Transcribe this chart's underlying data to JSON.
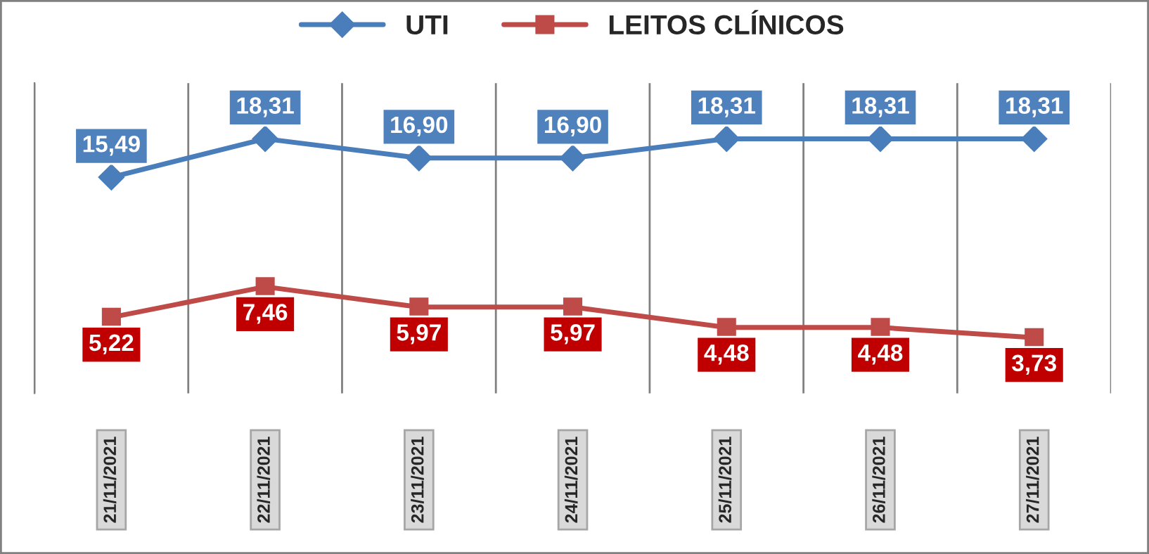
{
  "chart_data": {
    "type": "line",
    "categories": [
      "21/11/2021",
      "22/11/2021",
      "23/11/2021",
      "24/11/2021",
      "25/11/2021",
      "26/11/2021",
      "27/11/2021"
    ],
    "series": [
      {
        "name": "UTI",
        "color": "#4a7ebb",
        "marker": "diamond",
        "values": [
          15.49,
          18.31,
          16.9,
          16.9,
          18.31,
          18.31,
          18.31
        ],
        "value_labels": [
          "15,49",
          "18,31",
          "16,90",
          "16,90",
          "18,31",
          "18,31",
          "18,31"
        ]
      },
      {
        "name": "LEITOS CLÍNICOS",
        "color": "#be4b48",
        "marker": "square",
        "values": [
          5.22,
          7.46,
          5.97,
          5.97,
          4.48,
          4.48,
          3.73
        ],
        "value_labels": [
          "5,22",
          "7,46",
          "5,97",
          "5,97",
          "4,48",
          "4,48",
          "3,73"
        ]
      }
    ],
    "grid": "x",
    "legend": "top",
    "tick_labels": "x"
  }
}
